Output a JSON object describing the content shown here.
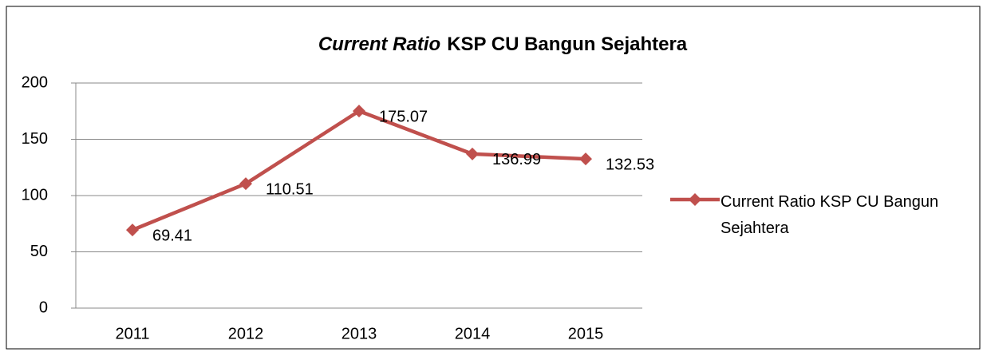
{
  "chart_data": {
    "type": "line",
    "title": [
      "Current Ratio",
      "KSP CU Bangun Sejahtera"
    ],
    "categories": [
      "2011",
      "2012",
      "2013",
      "2014",
      "2015"
    ],
    "series": [
      {
        "name": "Current Ratio KSP CU Bangun Sejahtera",
        "color": "#c0504d",
        "values": [
          69.41,
          110.51,
          175.07,
          136.99,
          132.53
        ]
      }
    ],
    "ylim": [
      0,
      200
    ],
    "yticks": [
      0,
      50,
      100,
      150,
      200
    ],
    "grid": true,
    "legend": "right"
  }
}
